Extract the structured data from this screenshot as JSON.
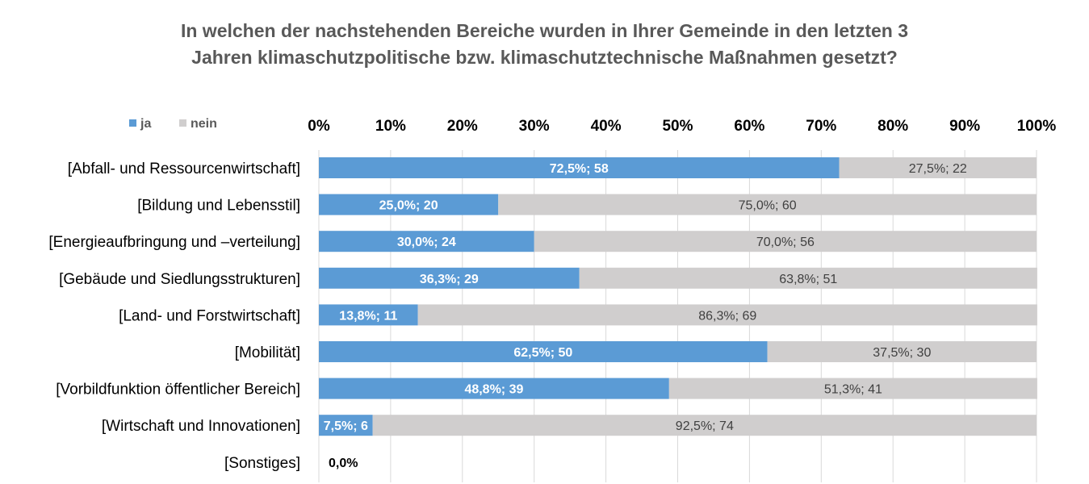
{
  "chart_data": {
    "type": "bar",
    "orientation": "horizontal",
    "stacked": true,
    "title_lines": [
      "In welchen der nachstehenden Bereiche wurden in Ihrer Gemeinde in den letzten 3",
      "Jahren klimaschutzpolitische bzw. klimaschutztechnische Maßnahmen gesetzt?"
    ],
    "categories": [
      "[Abfall- und Ressourcenwirtschaft]",
      "[Bildung und Lebensstil]",
      "[Energieaufbringung und –verteilung]",
      "[Gebäude und Siedlungsstrukturen]",
      "[Land- und Forstwirtschaft]",
      "[Mobilität]",
      "[Vorbildfunktion öffentlicher Bereich]",
      "[Wirtschaft und Innovationen]",
      "[Sonstiges]"
    ],
    "series": [
      {
        "name": "ja",
        "color": "#5b9bd5",
        "values": [
          72.5,
          25.0,
          30.0,
          36.3,
          13.8,
          62.5,
          48.8,
          7.5,
          0.0
        ],
        "labels": [
          "72,5%; 58",
          "25,0%; 20",
          "30,0%; 24",
          "36,3%; 29",
          "13,8%; 11",
          "62,5%; 50",
          "48,8%; 39",
          "7,5%; 6",
          "0,0%"
        ]
      },
      {
        "name": "nein",
        "color": "#d0cece",
        "values": [
          27.5,
          75.0,
          70.0,
          63.8,
          86.3,
          37.5,
          51.3,
          92.5,
          0.0
        ],
        "labels": [
          "27,5%; 22",
          "75,0%; 60",
          "70,0%; 56",
          "63,8%; 51",
          "86,3%; 69",
          "37,5%; 30",
          "51,3%; 41",
          "92,5%; 74",
          ""
        ]
      }
    ],
    "xlim": [
      0,
      100
    ],
    "xticks": [
      "0%",
      "10%",
      "20%",
      "30%",
      "40%",
      "50%",
      "60%",
      "70%",
      "80%",
      "90%",
      "100%"
    ],
    "legend_position": "top-left",
    "gridlines": true
  }
}
